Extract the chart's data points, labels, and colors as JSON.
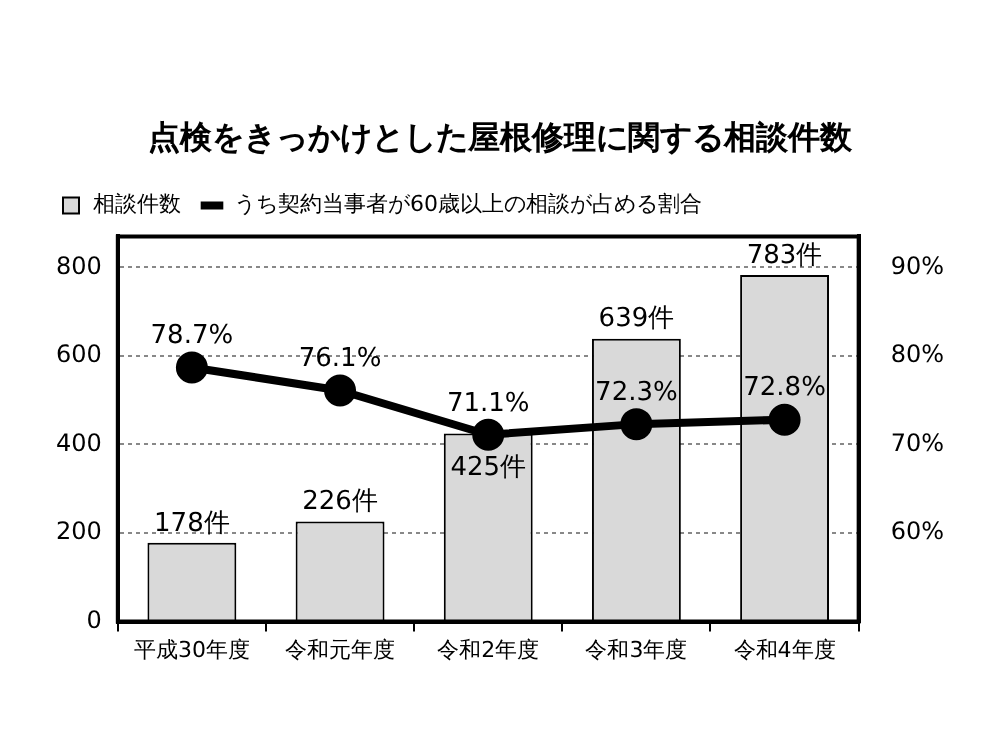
{
  "chart_data": {
    "type": "bar",
    "title": "点検をきっかけとした屋根修理に関する相談件数",
    "categories": [
      "平成30年度",
      "令和元年度",
      "令和2年度",
      "令和3年度",
      "令和4年度"
    ],
    "series": [
      {
        "name": "相談件数",
        "color": "#d9d9d9",
        "values": [
          178,
          226,
          425,
          639,
          783
        ],
        "value_labels": [
          "178件",
          "226件",
          "425件",
          "639件",
          "783件"
        ]
      },
      {
        "name": "うち契約当事者が60歳以上の相談が占める割合",
        "type": "line",
        "axis": "y2",
        "color": "#000000",
        "values": [
          78.7,
          76.1,
          71.1,
          72.3,
          72.8
        ],
        "value_labels": [
          "78.7%",
          "76.1%",
          "71.1%",
          "72.3%",
          "72.8%"
        ]
      }
    ],
    "ylim": [
      0,
      870
    ],
    "yticks": [
      0,
      200,
      400,
      600,
      800
    ],
    "y2lim": [
      50,
      93.5
    ],
    "y2ticks": [
      {
        "value": 60,
        "label": "60%"
      },
      {
        "value": 70,
        "label": "70%"
      },
      {
        "value": 80,
        "label": "80%"
      },
      {
        "value": 90,
        "label": "90%"
      }
    ],
    "grid": "y",
    "legend": "top left",
    "marker": "circle",
    "line_style": "solid"
  }
}
